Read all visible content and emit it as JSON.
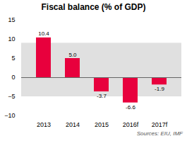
{
  "chart_data": {
    "type": "bar",
    "title": "Fiscal balance (% of GDP)",
    "categories": [
      "2013",
      "2014",
      "2015",
      "2016f",
      "2017f"
    ],
    "values": [
      10.4,
      5.0,
      -3.7,
      -6.6,
      -1.9
    ],
    "value_labels": [
      "10.4",
      "5.0",
      "-3.7",
      "-6.6",
      "-1.9"
    ],
    "data_labels": true,
    "color": "#e8003d",
    "ylim": [
      -10,
      15
    ],
    "yticks": [
      -10,
      -5,
      0,
      5,
      10,
      15
    ],
    "band": [
      -5,
      9
    ],
    "grid": false,
    "annotation": "Sources: EIU, IMF"
  }
}
